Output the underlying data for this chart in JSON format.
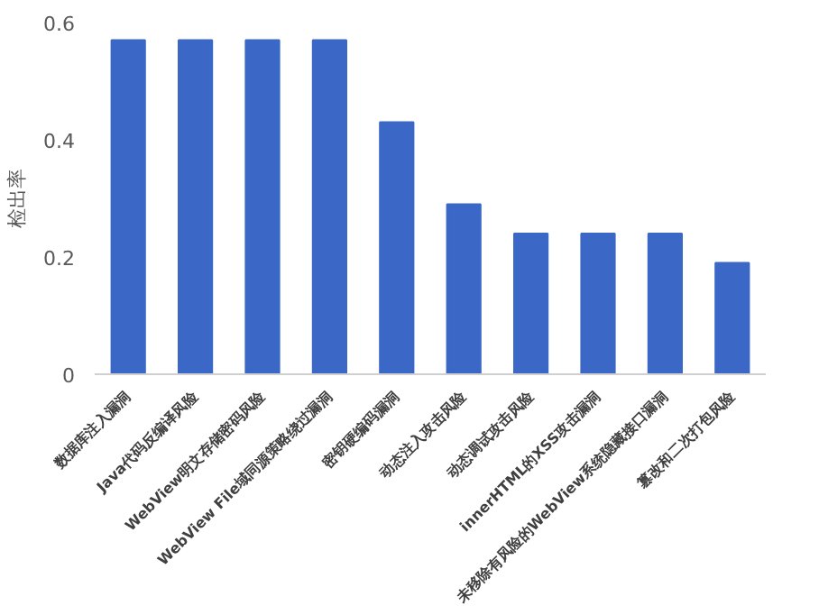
{
  "chart_data": {
    "type": "bar",
    "ylabel": "检出率",
    "categories": [
      "数据库注入漏洞",
      "Java代码反编译风险",
      "WebView明文存储密码风险",
      "WebView File域同源策略绕过漏洞",
      "密钥硬编码漏洞",
      "动态注入攻击风险",
      "动态调试攻击风险",
      "innerHTML的XSS攻击漏洞",
      "未移除有风险的WebView系统隐藏接口漏洞",
      "篡改和二次打包风险"
    ],
    "values": [
      0.57,
      0.57,
      0.57,
      0.57,
      0.43,
      0.29,
      0.24,
      0.24,
      0.24,
      0.19
    ],
    "color": "#3b68c6",
    "ylim": [
      0,
      0.6
    ],
    "yticks": [
      0,
      0.2,
      0.4,
      0.6
    ],
    "grid": false
  }
}
